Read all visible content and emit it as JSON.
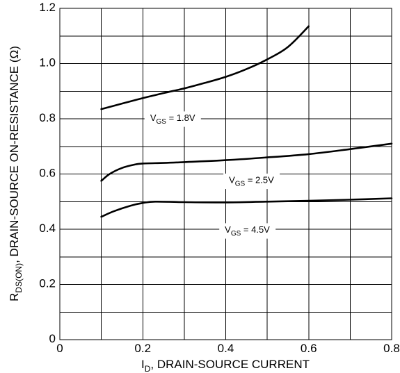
{
  "chart_data": {
    "type": "line",
    "xlabel": {
      "main": "I",
      "sub": "D",
      "rest": ", DRAIN-SOURCE CURRENT"
    },
    "ylabel": {
      "main": "R",
      "sub": "DS(ON)",
      "rest": ", DRAIN-SOURCE ON-RESISTANCE (Ω)"
    },
    "xlim": [
      0,
      0.8
    ],
    "ylim": [
      0,
      1.2
    ],
    "grid": true,
    "x_ticks": [
      {
        "value": 0,
        "label": "0"
      },
      {
        "value": 0.2,
        "label": "0.2"
      },
      {
        "value": 0.4,
        "label": "0.4"
      },
      {
        "value": 0.6,
        "label": "0.6"
      },
      {
        "value": 0.8,
        "label": "0.8"
      }
    ],
    "y_ticks": [
      {
        "value": 0,
        "label": "0"
      },
      {
        "value": 0.2,
        "label": "0.2"
      },
      {
        "value": 0.4,
        "label": "0.4"
      },
      {
        "value": 0.6,
        "label": "0.6"
      },
      {
        "value": 0.8,
        "label": "0.8"
      },
      {
        "value": 1.0,
        "label": "1.0"
      },
      {
        "value": 1.2,
        "label": "1.2"
      }
    ],
    "x_grid": [
      0.1,
      0.2,
      0.3,
      0.4,
      0.5,
      0.6,
      0.7
    ],
    "y_grid": [
      0.1,
      0.2,
      0.3,
      0.4,
      0.5,
      0.6,
      0.7,
      0.8,
      0.9,
      1.0,
      1.1
    ],
    "series": [
      {
        "name": "V_GS = 1.8V",
        "label": {
          "main": "V",
          "sub": "GS",
          "rest": " = 1.8V"
        },
        "label_at": {
          "x": 0.272,
          "y": 0.8
        },
        "points": [
          [
            0.1,
            0.835
          ],
          [
            0.15,
            0.855
          ],
          [
            0.2,
            0.875
          ],
          [
            0.25,
            0.893
          ],
          [
            0.3,
            0.91
          ],
          [
            0.35,
            0.93
          ],
          [
            0.4,
            0.952
          ],
          [
            0.45,
            0.98
          ],
          [
            0.5,
            1.015
          ],
          [
            0.55,
            1.06
          ],
          [
            0.6,
            1.135
          ]
        ]
      },
      {
        "name": "V_GS = 2.5V",
        "label": {
          "main": "V",
          "sub": "GS",
          "rest": " = 2.5V"
        },
        "label_at": {
          "x": 0.462,
          "y": 0.575
        },
        "points": [
          [
            0.1,
            0.575
          ],
          [
            0.12,
            0.6
          ],
          [
            0.15,
            0.622
          ],
          [
            0.18,
            0.634
          ],
          [
            0.2,
            0.638
          ],
          [
            0.25,
            0.64
          ],
          [
            0.3,
            0.643
          ],
          [
            0.4,
            0.65
          ],
          [
            0.5,
            0.66
          ],
          [
            0.6,
            0.672
          ],
          [
            0.7,
            0.69
          ],
          [
            0.8,
            0.71
          ]
        ]
      },
      {
        "name": "V_GS = 4.5V",
        "label": {
          "main": "V",
          "sub": "GS",
          "rest": " = 4.5V"
        },
        "label_at": {
          "x": 0.452,
          "y": 0.395
        },
        "points": [
          [
            0.1,
            0.445
          ],
          [
            0.13,
            0.465
          ],
          [
            0.17,
            0.485
          ],
          [
            0.2,
            0.495
          ],
          [
            0.23,
            0.5
          ],
          [
            0.3,
            0.498
          ],
          [
            0.4,
            0.497
          ],
          [
            0.5,
            0.5
          ],
          [
            0.6,
            0.503
          ],
          [
            0.7,
            0.507
          ],
          [
            0.8,
            0.512
          ]
        ]
      }
    ]
  }
}
